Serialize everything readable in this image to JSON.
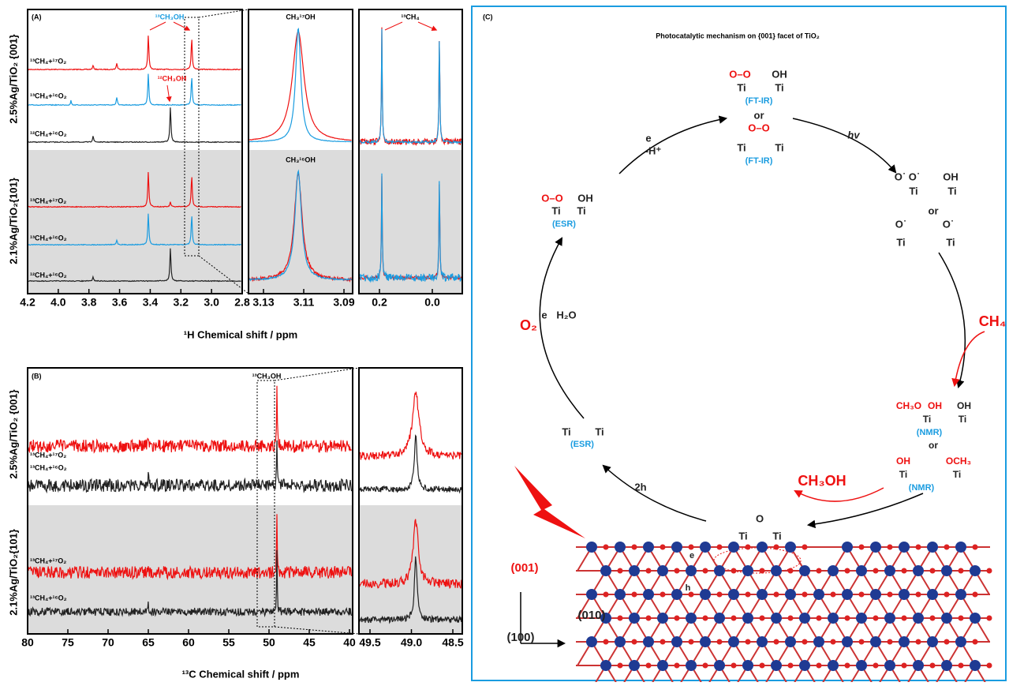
{
  "panel_a": {
    "label": "(A)",
    "samples": [
      "2.5%Ag/TiO₂ {001}",
      "2.1%Ag/TiO₂{101}"
    ],
    "traces": [
      "¹³CH₄+¹⁷O₂",
      "¹³CH₄+¹⁶O₂",
      "¹²CH₄+¹⁶O₂",
      "¹³CH₄+¹⁷O₂",
      "¹³CH₄+¹⁶O₂",
      "¹²CH₄+¹⁶O₂"
    ],
    "annotations": [
      "¹³CH₃OH",
      "¹²CH₃OH",
      "CH₃¹⁷OH",
      "CH₃¹⁶OH",
      "¹³CH₄"
    ],
    "ticks_main": [
      "4.2",
      "4.0",
      "3.8",
      "3.6",
      "3.4",
      "3.2",
      "3.0",
      "2.8"
    ],
    "ticks_zoom": [
      "3.13",
      "3.11",
      "3.09"
    ],
    "ticks_right": [
      "0.2",
      "0.0"
    ],
    "xlabel": "¹H Chemical shift / ppm"
  },
  "panel_b": {
    "label": "(B)",
    "samples": [
      "2.5%Ag/TiO₂ {001}",
      "2.1%Ag/TiO₂{101}"
    ],
    "traces": [
      "¹³CH₄+¹⁷O₂",
      "¹³CH₄+¹⁶O₂",
      "¹³CH₄+¹⁷O₂",
      "¹³CH₄+¹⁶O₂"
    ],
    "annotation": "¹³CH₃OH",
    "ticks_main": [
      "80",
      "75",
      "70",
      "65",
      "60",
      "55",
      "50",
      "45",
      "40"
    ],
    "ticks_zoom": [
      "49.5",
      "49.0",
      "48.5"
    ],
    "xlabel": "¹³C Chemical shift / ppm"
  },
  "panel_c": {
    "label": "(C)",
    "title": "Photocatalytic mechanism on {001} facet of TiO₂",
    "labels": [
      "O–O",
      "OH",
      "Ti",
      "Ti",
      "(FT-IR)",
      "or",
      "O–O",
      "Ti",
      "Ti",
      "(FT-IR)",
      "hv",
      "O˙ O˙",
      "OH",
      "Ti",
      "Ti",
      "or",
      "O˙",
      "O˙",
      "Ti",
      "Ti",
      "CH₄",
      "CH₃O",
      "OH",
      "OH",
      "Ti",
      "Ti",
      "(NMR)",
      "or",
      "OH",
      "OCH₃",
      "Ti",
      "Ti",
      "(NMR)",
      "CH₃OH",
      "O",
      "Ti",
      "Ti",
      "2h",
      "Ti",
      "Ti",
      "(ESR)",
      "O₂",
      "e",
      "H₂O",
      "O–O",
      "OH",
      "Ti",
      "Ti",
      "(ESR)",
      "e",
      "-H⁺",
      "e",
      "h",
      "(001)",
      "(010)",
      "(100)"
    ]
  }
}
